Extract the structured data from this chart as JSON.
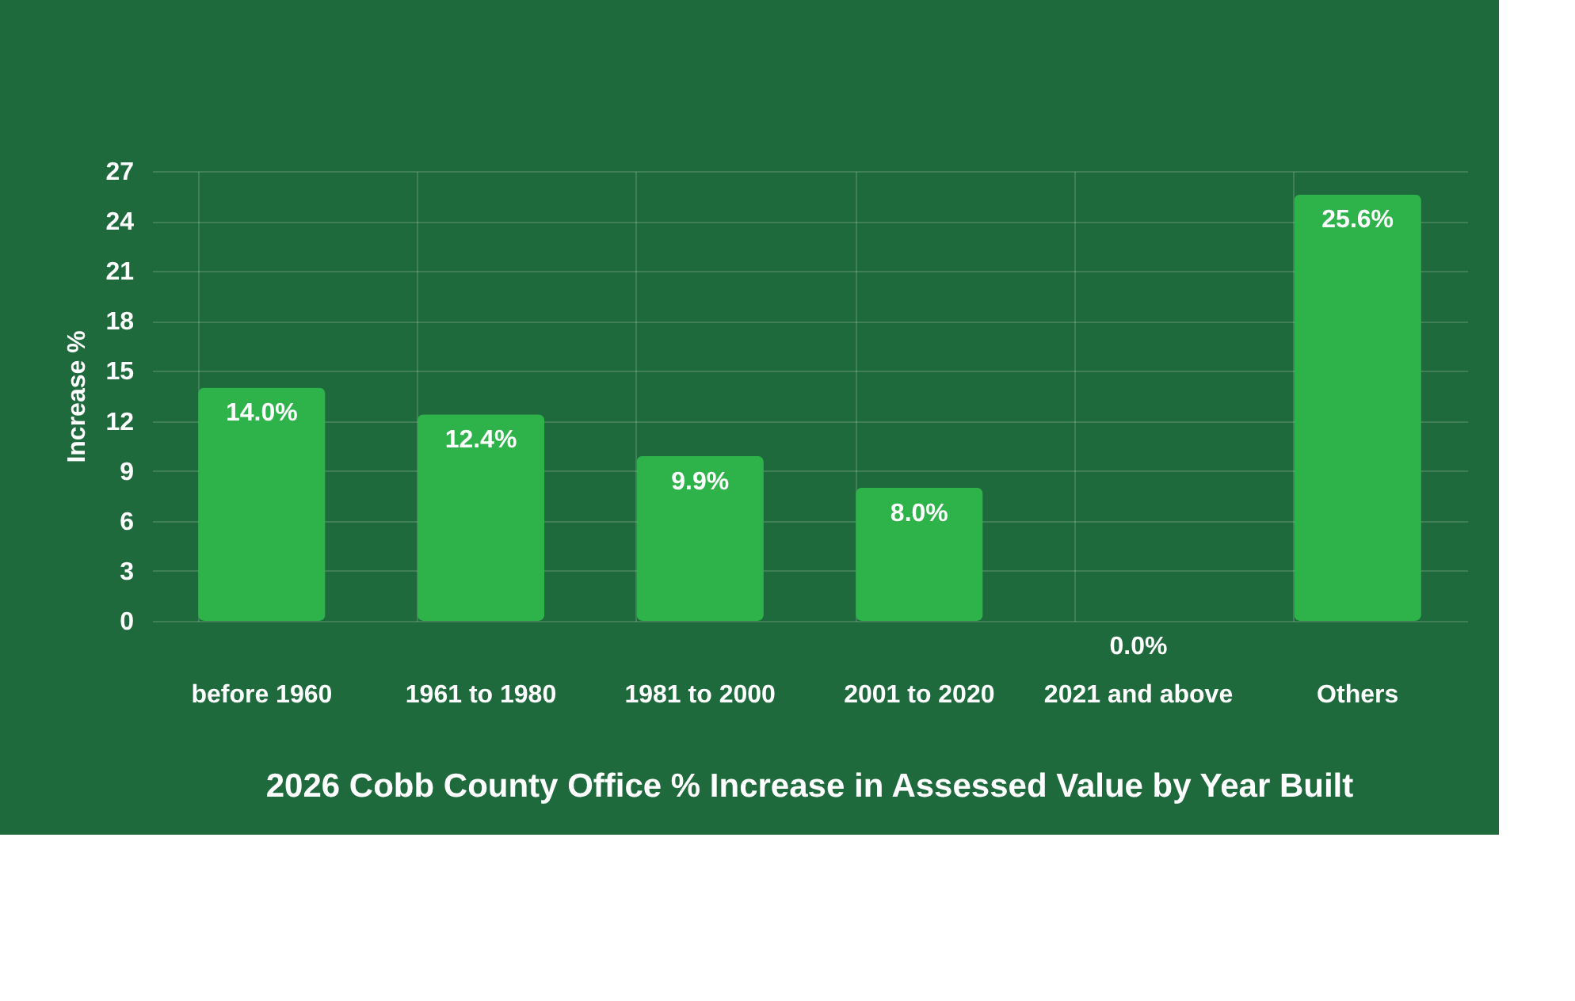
{
  "chart_data": {
    "type": "bar",
    "title": "2026 Cobb County Office % Increase in Assessed Value by Year Built",
    "ylabel": "Increase %",
    "categories": [
      "before 1960",
      "1961 to 1980",
      "1981 to 2000",
      "2001 to 2020",
      "2021 and above",
      "Others"
    ],
    "values": [
      14.0,
      12.4,
      9.9,
      8.0,
      0.0,
      25.6
    ],
    "value_labels": [
      "14.0%",
      "12.4%",
      "9.9%",
      "8.0%",
      "0.0%",
      "25.6%"
    ],
    "color": "#2db34a",
    "ylim": [
      0,
      27
    ],
    "yticks": [
      0,
      3,
      6,
      9,
      12,
      15,
      18,
      21,
      24,
      27
    ],
    "grid": true
  }
}
